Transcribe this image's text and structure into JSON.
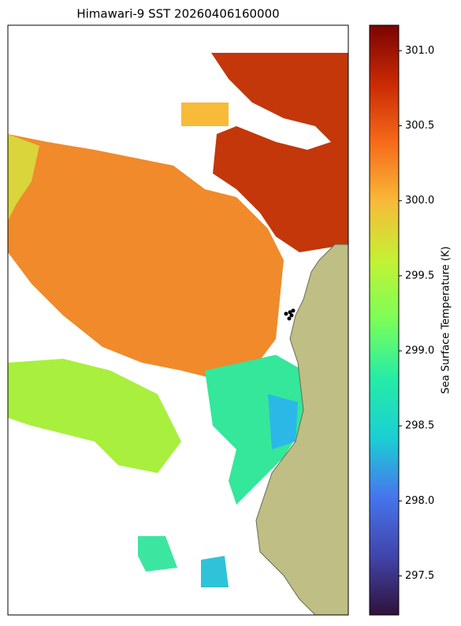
{
  "chart_data": {
    "type": "heatmap-map",
    "title": "Himawari-9 SST 20260406160000",
    "colorbar_label": "Sea Surface Temperature (K)",
    "clim": [
      297.24,
      301.17
    ],
    "cticks": [
      297.5,
      {
        "value": 298,
        "label": "298.0"
      },
      298.5,
      {
        "value": 299,
        "label": "299.0"
      },
      299.5,
      {
        "value": 300,
        "label": "300.0"
      },
      300.5,
      {
        "value": 301,
        "label": "301.0"
      }
    ]
  }
}
